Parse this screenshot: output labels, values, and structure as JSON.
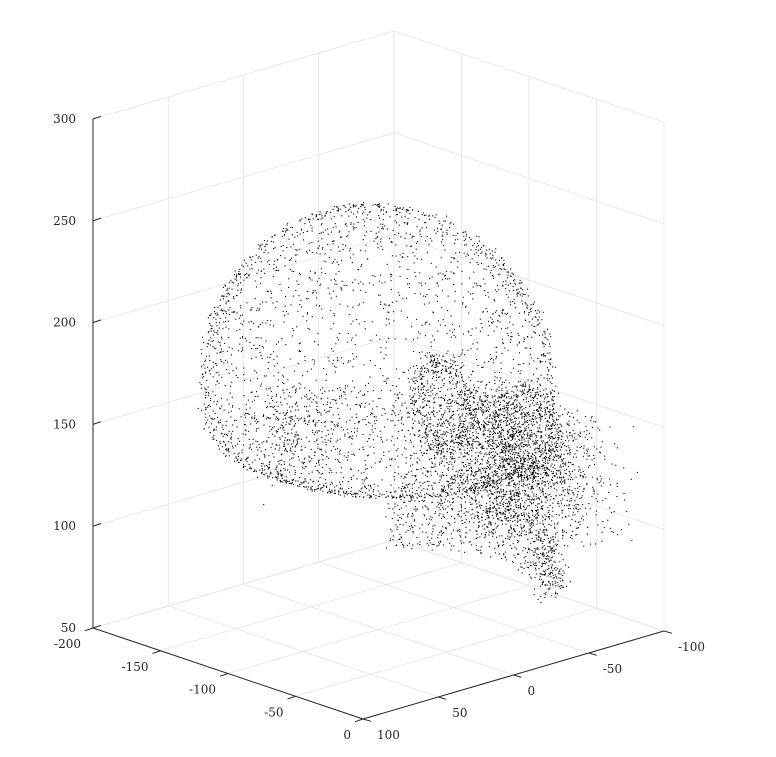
{
  "chart_data": {
    "type": "scatter",
    "title": "",
    "xlabel": "",
    "ylabel": "",
    "zlabel": "",
    "projection": "3d",
    "grid": true,
    "xlim": [
      -200,
      0
    ],
    "ylim": [
      -100,
      100
    ],
    "zlim": [
      50,
      300
    ],
    "x_ticks": [
      -200,
      -150,
      -100,
      -50,
      0
    ],
    "y_ticks": [
      -100,
      -50,
      0,
      50,
      100
    ],
    "z_ticks": [
      50,
      100,
      150,
      200,
      250,
      300
    ],
    "x_tick_labels": [
      "-200",
      "-150",
      "-100",
      "-50",
      "0"
    ],
    "y_tick_labels": [
      "-100",
      "-50",
      "0",
      "50",
      "100"
    ],
    "z_tick_labels": [
      "50",
      "100",
      "150",
      "200",
      "250",
      "300"
    ],
    "marker_color": "#000000",
    "point_count": 7000,
    "shape_description": "dense point cloud of a human skull surface: cranium dome plus face, eye sockets and jaw"
  }
}
